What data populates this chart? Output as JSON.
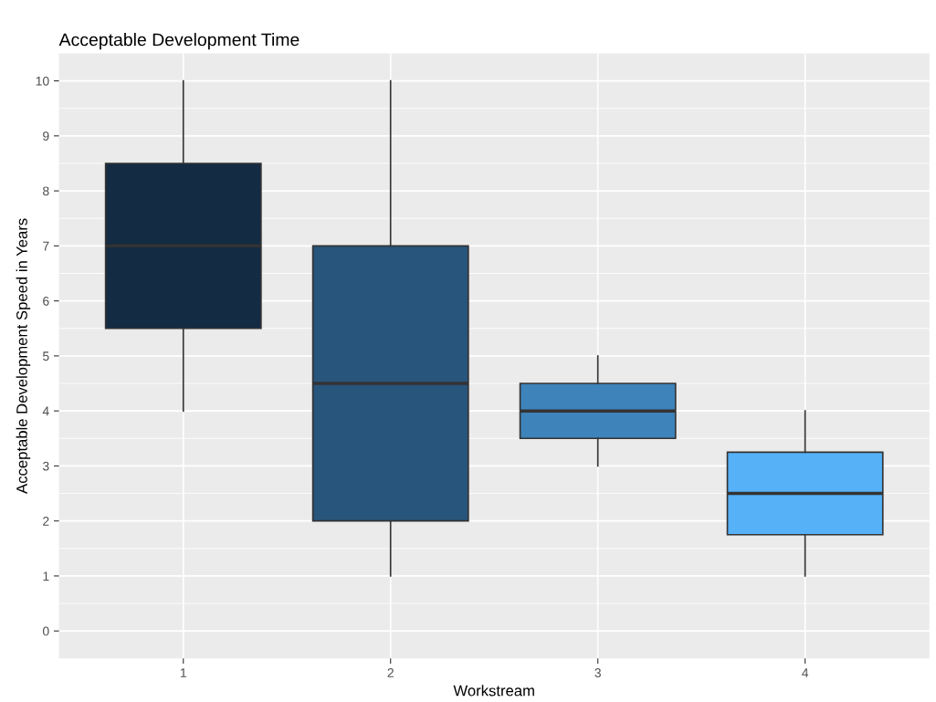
{
  "chart_data": {
    "type": "box",
    "title": "Acceptable Development Time",
    "xlabel": "Workstream",
    "ylabel": "Acceptable Development Speed in Years",
    "categories": [
      "1",
      "2",
      "3",
      "4"
    ],
    "colors": [
      "#132b43",
      "#28557c",
      "#3e83ba",
      "#56b1f7"
    ],
    "boxes": [
      {
        "low": 4,
        "q1": 5.5,
        "median": 7,
        "q3": 8.5,
        "high": 10
      },
      {
        "low": 1,
        "q1": 2,
        "median": 4.5,
        "q3": 7,
        "high": 10
      },
      {
        "low": 3,
        "q1": 3.5,
        "median": 4,
        "q3": 4.5,
        "high": 5
      },
      {
        "low": 1,
        "q1": 1.75,
        "median": 2.5,
        "q3": 3.25,
        "high": 4
      }
    ],
    "ylim": [
      -0.5,
      10.5
    ],
    "yticks": [
      0,
      1,
      2,
      3,
      4,
      5,
      6,
      7,
      8,
      9,
      10
    ],
    "grid": true
  }
}
